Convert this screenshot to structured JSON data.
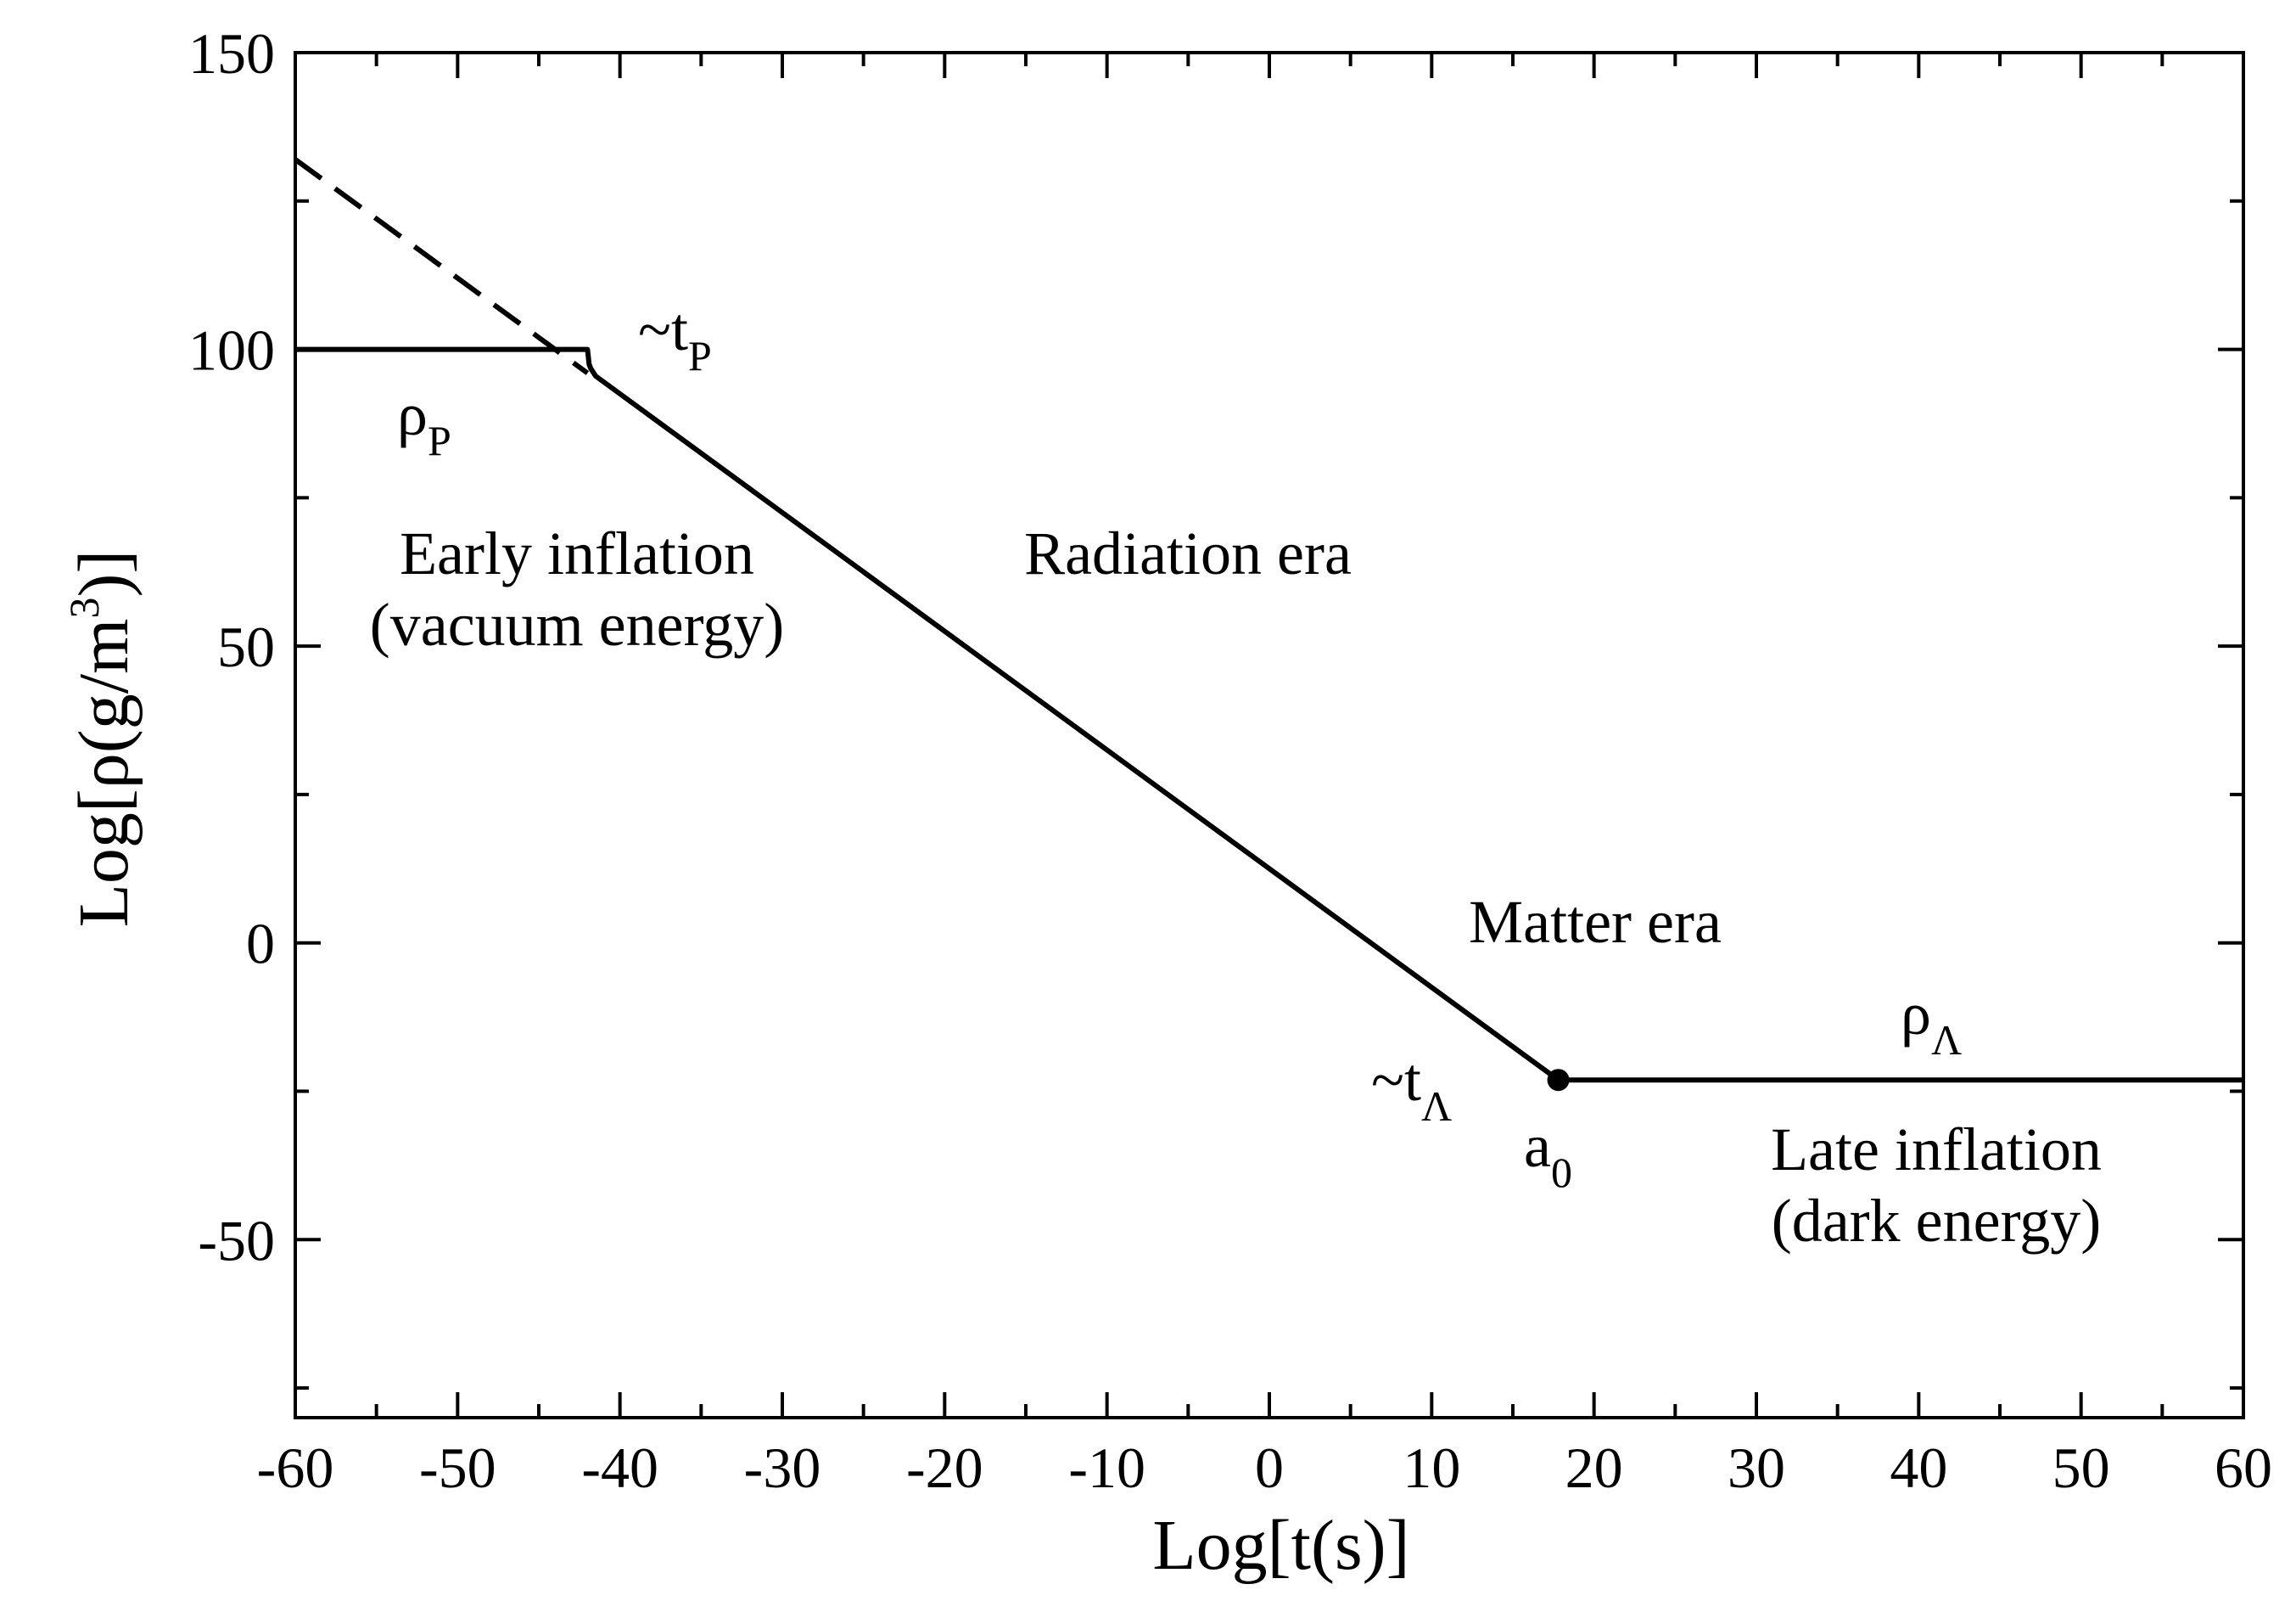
{
  "chart_data": {
    "type": "line",
    "xlabel": "Log[t(s)]",
    "ylabel": {
      "main": "Log[ρ(g/m",
      "sup": "3",
      "close": ")]"
    },
    "xlim": [
      -60,
      60
    ],
    "ylim": [
      -80,
      150
    ],
    "x_ticks": [
      -60,
      -50,
      -40,
      -30,
      -20,
      -10,
      0,
      10,
      20,
      30,
      40,
      50,
      60
    ],
    "y_ticks": [
      150,
      100,
      50,
      0,
      -50
    ],
    "x_minor_step": 5,
    "y_minor_step": 25,
    "grid": false,
    "series": [
      {
        "style": "solid",
        "x": [
          -60,
          -42,
          -41.9,
          -41.8,
          -41.5,
          17.8,
          60
        ],
        "y": [
          100,
          100,
          97.5,
          96.8,
          95.5,
          -23.1,
          -23.1
        ]
      },
      {
        "style": "dashed",
        "x": [
          -60,
          -42
        ],
        "y": [
          132,
          96
        ]
      }
    ],
    "markers": [
      {
        "name": "a0-marker",
        "x": 17.8,
        "y": -23.1
      }
    ],
    "annotations": [
      {
        "id": "t-p",
        "parts": [
          {
            "t": "~t"
          },
          {
            "t": "P",
            "sub": true
          }
        ]
      },
      {
        "id": "rho-p",
        "parts": [
          {
            "t": "ρ"
          },
          {
            "t": "P",
            "sub": true
          }
        ]
      },
      {
        "id": "early-inflation",
        "lines": [
          "Early inflation",
          "(vacuum energy)"
        ]
      },
      {
        "id": "radiation-era",
        "lines": [
          "Radiation era"
        ]
      },
      {
        "id": "matter-era",
        "lines": [
          "Matter era"
        ]
      },
      {
        "id": "rho-lambda",
        "parts": [
          {
            "t": "ρ"
          },
          {
            "t": "Λ",
            "sub": true
          }
        ]
      },
      {
        "id": "t-lambda",
        "parts": [
          {
            "t": "~t"
          },
          {
            "t": "Λ",
            "sub": true
          }
        ]
      },
      {
        "id": "a-zero",
        "parts": [
          {
            "t": "a"
          },
          {
            "t": "0",
            "sub": true
          }
        ]
      },
      {
        "id": "late-inflation",
        "lines": [
          "Late inflation",
          "(dark energy)"
        ]
      }
    ]
  }
}
